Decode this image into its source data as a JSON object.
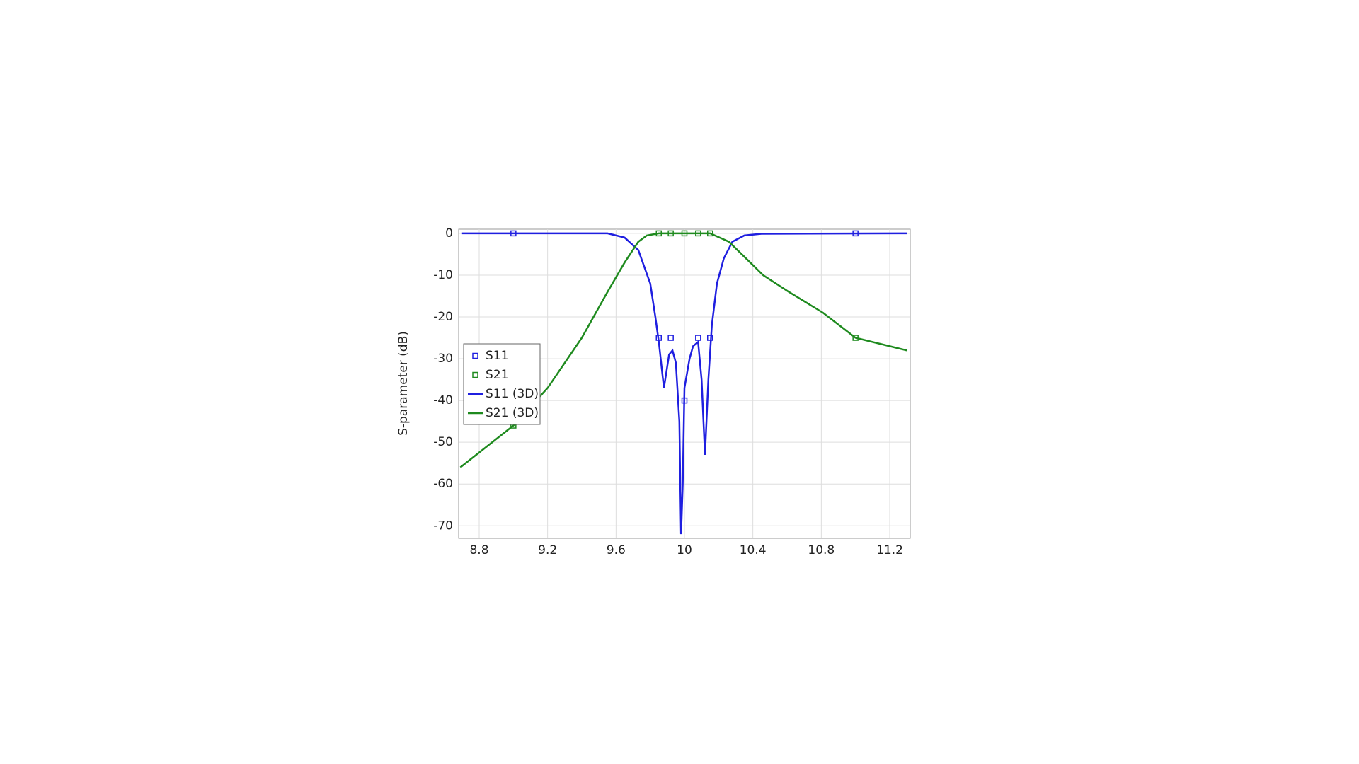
{
  "chart_data": {
    "type": "line",
    "y_label": "S-parameter (dB)",
    "xlim": [
      8.68,
      11.32
    ],
    "ylim": [
      -73,
      1
    ],
    "xticks": [
      8.8,
      9.2,
      9.6,
      10,
      10.4,
      10.8,
      11.2
    ],
    "yticks": [
      0,
      -10,
      -20,
      -30,
      -40,
      -50,
      -60,
      -70
    ],
    "grid": true,
    "legend": "left",
    "series": [
      {
        "name": "S11",
        "color": "#1f1fe0",
        "style": "markers",
        "x": [
          9.0,
          9.85,
          9.92,
          10.0,
          10.08,
          10.15,
          11.0
        ],
        "values": [
          0,
          -25,
          -25,
          -40,
          -25,
          -25,
          0
        ]
      },
      {
        "name": "S21",
        "color": "#1e8a1e",
        "style": "markers",
        "x": [
          9.0,
          9.85,
          9.92,
          10.0,
          10.08,
          10.15,
          11.0
        ],
        "values": [
          -46,
          0,
          0,
          0,
          0,
          0,
          -25
        ]
      },
      {
        "name": "S11 (3D)",
        "color": "#1f1fe0",
        "style": "line",
        "x": [
          8.7,
          9.55,
          9.65,
          9.73,
          9.8,
          9.83,
          9.85,
          9.88,
          9.91,
          9.93,
          9.95,
          9.97,
          9.98,
          9.99,
          10.0,
          10.03,
          10.05,
          10.08,
          10.1,
          10.12,
          10.14,
          10.16,
          10.19,
          10.23,
          10.28,
          10.35,
          10.45,
          11.3
        ],
        "values": [
          0,
          0,
          -1,
          -4,
          -12,
          -20,
          -26,
          -37,
          -29,
          -28,
          -31,
          -45,
          -72,
          -60,
          -37,
          -30,
          -27,
          -26,
          -35,
          -53,
          -35,
          -22,
          -12,
          -6,
          -2,
          -0.5,
          -0.1,
          0
        ]
      },
      {
        "name": "S21 (3D)",
        "color": "#1e8a1e",
        "style": "line",
        "x": [
          8.69,
          9.0,
          9.2,
          9.4,
          9.55,
          9.65,
          9.73,
          9.78,
          9.85,
          10.15,
          10.26,
          10.36,
          10.46,
          10.61,
          10.81,
          11.0,
          11.3
        ],
        "values": [
          -56,
          -46,
          -37,
          -25,
          -14,
          -7,
          -2,
          -0.5,
          0,
          0,
          -2,
          -6,
          -10,
          -14,
          -19,
          -25,
          -28
        ]
      }
    ]
  }
}
